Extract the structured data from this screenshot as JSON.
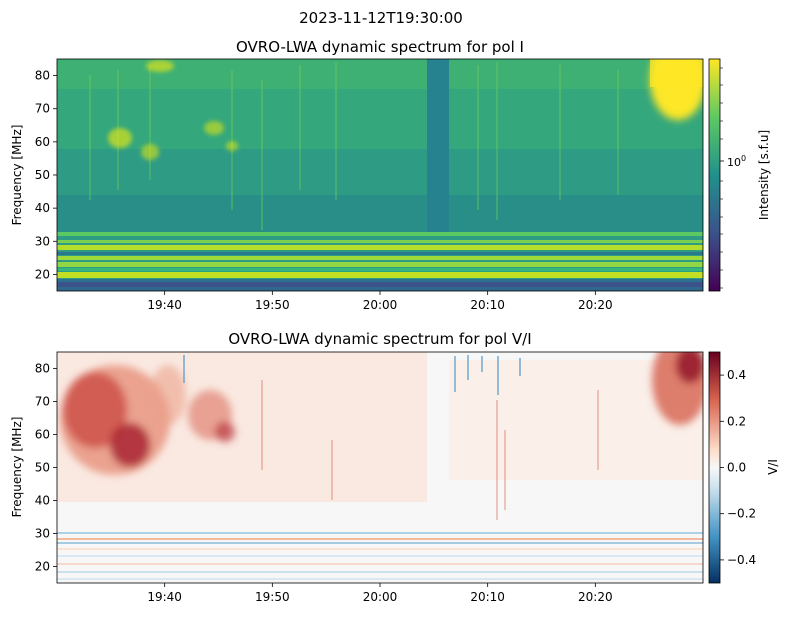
{
  "suptitle": "2023-11-12T19:30:00",
  "chart_data": [
    {
      "type": "heatmap",
      "title": "OVRO-LWA dynamic spectrum for pol I",
      "xlabel": "",
      "ylabel": "Frequency [MHz]",
      "x_range": [
        "19:30",
        "20:30"
      ],
      "x_ticks": [
        "19:40",
        "19:50",
        "20:00",
        "20:10",
        "20:20"
      ],
      "ylim": [
        15,
        85
      ],
      "y_ticks": [
        20,
        30,
        40,
        50,
        60,
        70,
        80
      ],
      "colormap": "viridis",
      "colorbar": {
        "label": "Intensity [s.f.u]",
        "scale": "log",
        "tick_labels": [
          "10^0"
        ]
      },
      "features": {
        "low_freq_bands_mhz": [
          15,
          32
        ],
        "data_gap_time": [
          "20:04:30",
          "20:06:30"
        ],
        "bright_burst_time": [
          "20:25:00",
          "20:30:00"
        ],
        "bright_burst_freq_mhz": [
          60,
          85
        ]
      }
    },
    {
      "type": "heatmap",
      "title": "OVRO-LWA dynamic spectrum for pol V/I",
      "xlabel": "",
      "ylabel": "Frequency [MHz]",
      "x_range": [
        "19:30",
        "20:30"
      ],
      "x_ticks": [
        "19:40",
        "19:50",
        "20:00",
        "20:10",
        "20:20"
      ],
      "ylim": [
        15,
        85
      ],
      "y_ticks": [
        20,
        30,
        40,
        50,
        60,
        70,
        80
      ],
      "colormap": "RdBu_r",
      "colorbar": {
        "label": "V/I",
        "scale": "linear",
        "range": [
          -0.5,
          0.5
        ],
        "ticks": [
          -0.4,
          -0.2,
          0.0,
          0.2,
          0.4
        ],
        "tick_labels": [
          "−0.4",
          "−0.2",
          "0.0",
          "0.2",
          "0.4"
        ]
      },
      "features": {
        "positive_region_time": [
          "19:30",
          "19:47"
        ],
        "positive_region_freq_mhz": [
          45,
          80
        ],
        "peak_value": 0.45,
        "negative_streaks_time": [
          "20:09",
          "20:15"
        ],
        "late_positive_time": [
          "20:24",
          "20:30"
        ]
      }
    }
  ]
}
